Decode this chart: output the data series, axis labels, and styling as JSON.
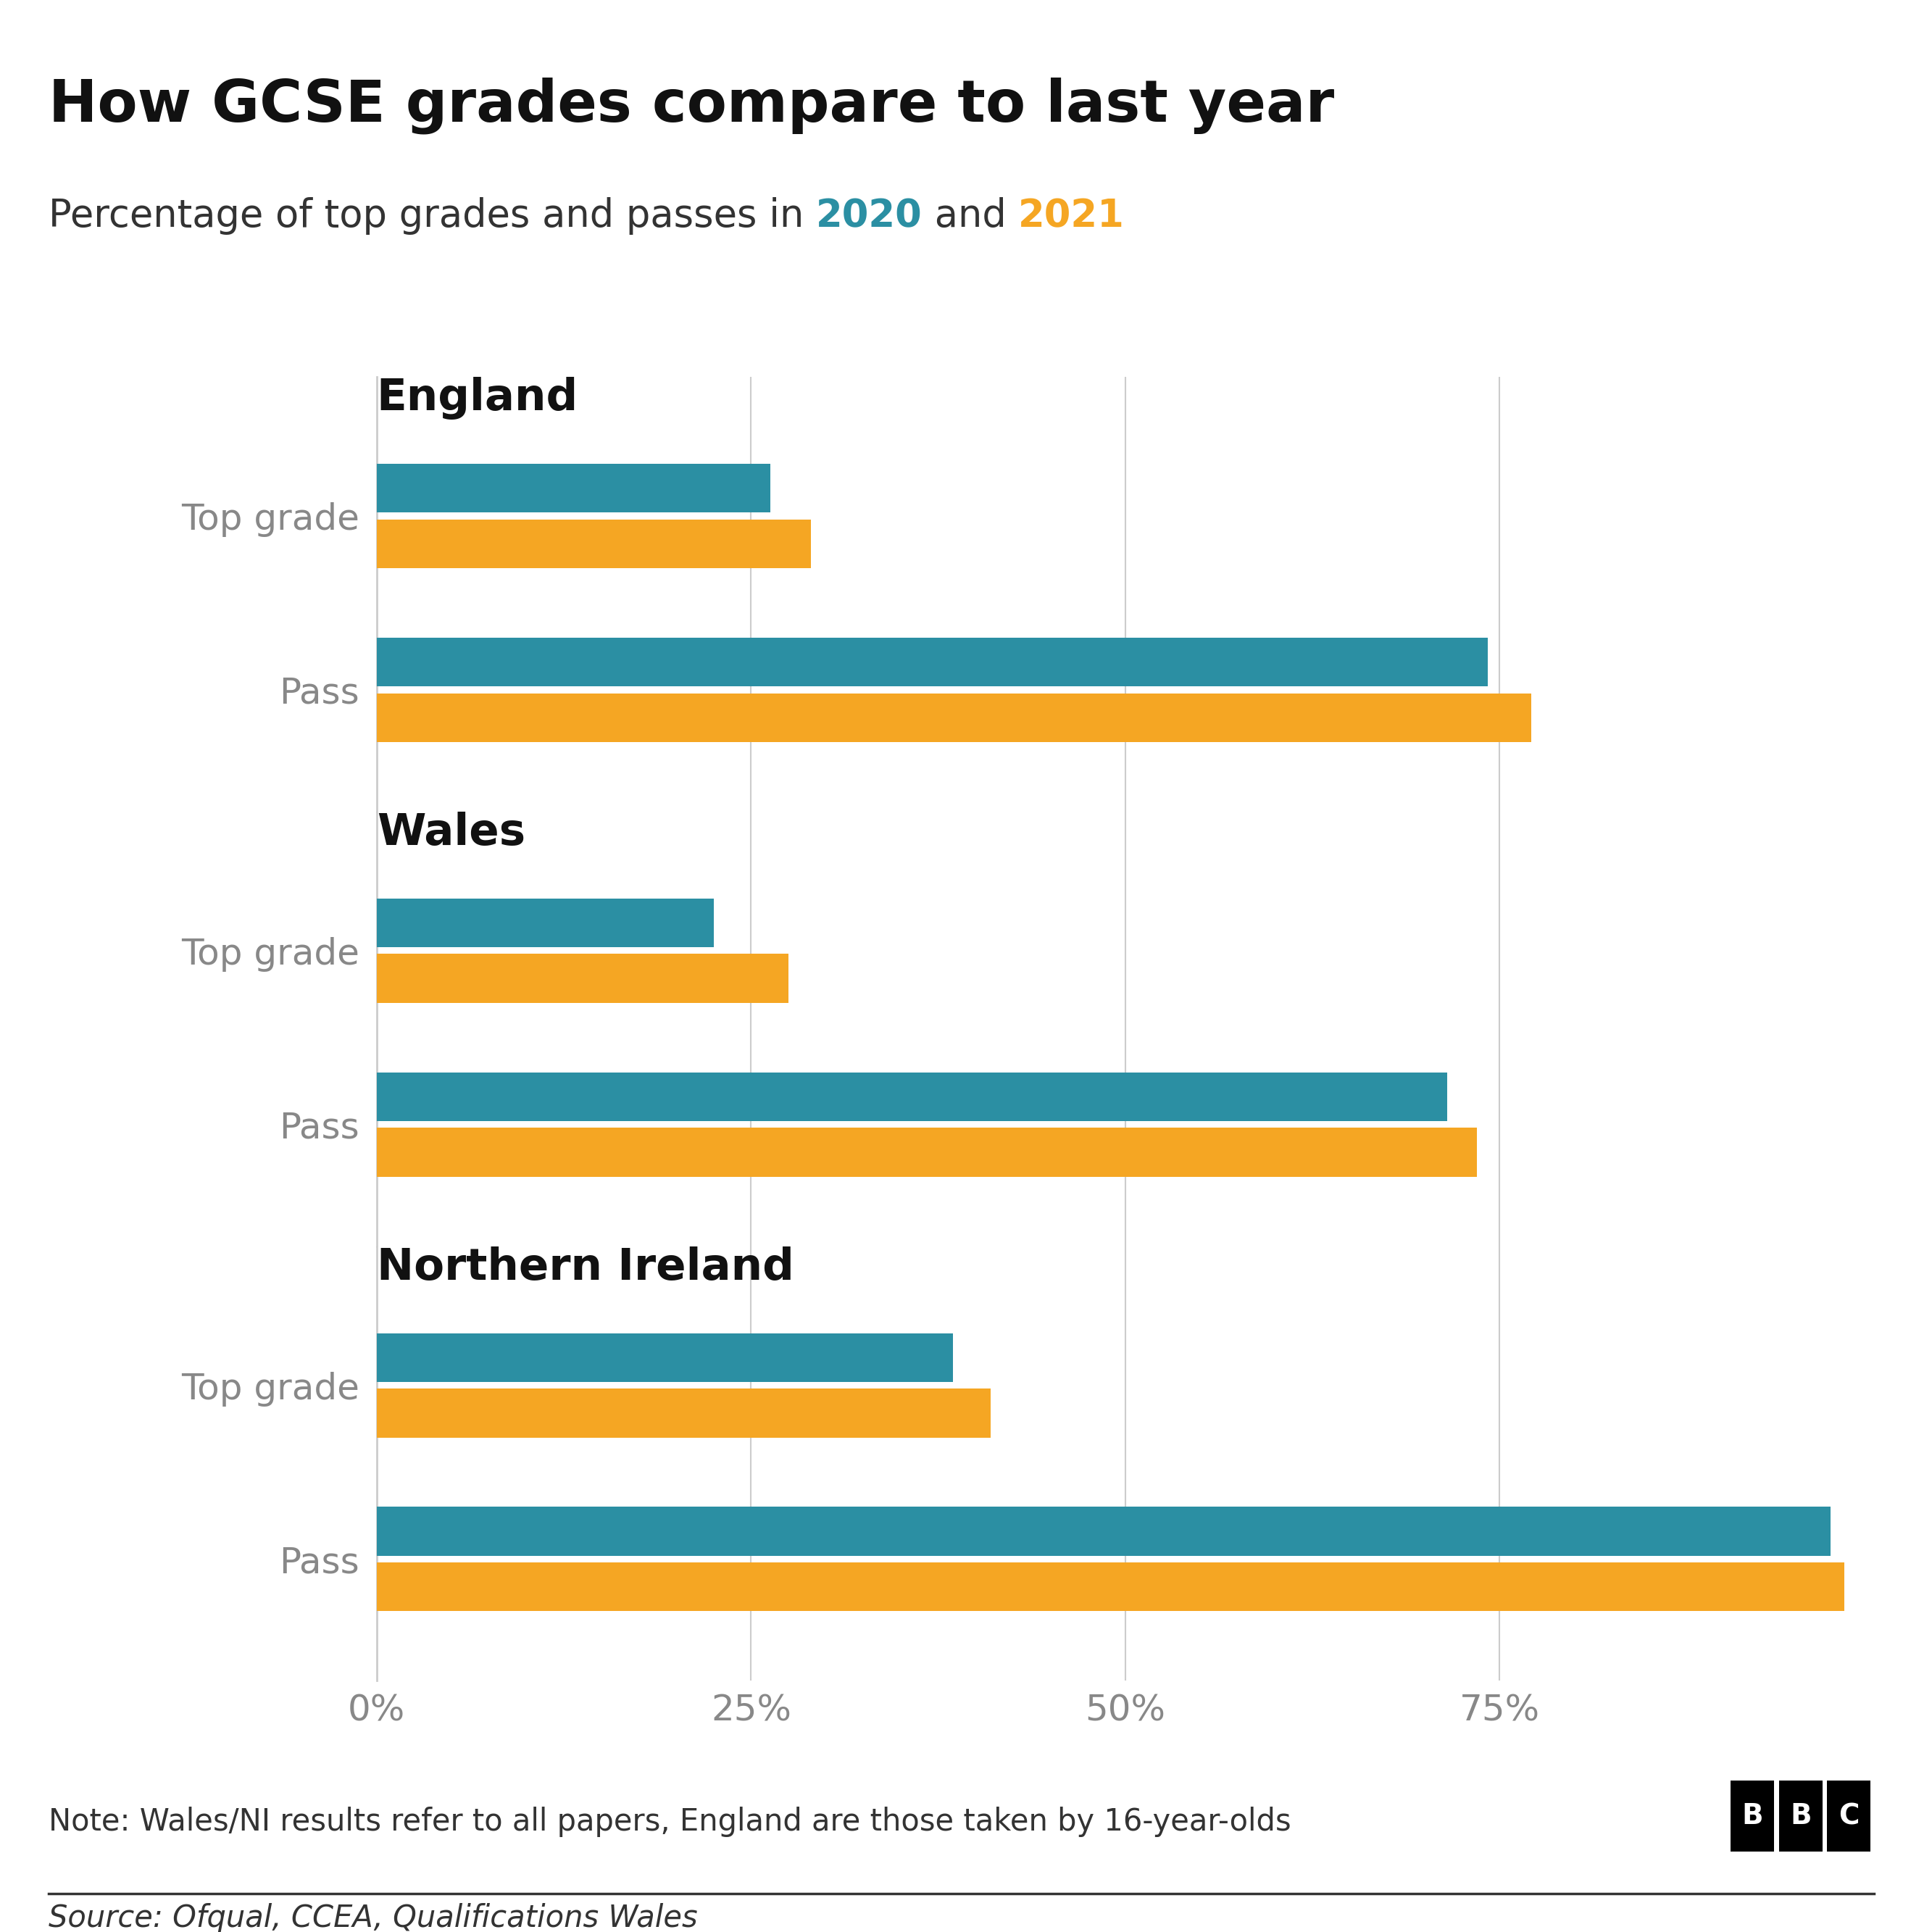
{
  "title": "How GCSE grades compare to last year",
  "subtitle_plain": "Percentage of top grades and passes in ",
  "subtitle_2020": "2020",
  "subtitle_and": " and ",
  "subtitle_2021": "2021",
  "color_2020": "#2B8FA3",
  "color_2021": "#F5A623",
  "regions": [
    "England",
    "Wales",
    "Northern Ireland"
  ],
  "values_2020": {
    "England": {
      "Top grade": 26.3,
      "Pass": 74.2
    },
    "Wales": {
      "Top grade": 22.5,
      "Pass": 71.5
    },
    "Northern Ireland": {
      "Top grade": 38.5,
      "Pass": 97.1
    }
  },
  "values_2021": {
    "England": {
      "Top grade": 29.0,
      "Pass": 77.1
    },
    "Wales": {
      "Top grade": 27.5,
      "Pass": 73.5
    },
    "Northern Ireland": {
      "Top grade": 41.0,
      "Pass": 98.0
    }
  },
  "xlim": [
    0,
    100
  ],
  "xticks": [
    0,
    25,
    50,
    75
  ],
  "xtick_labels": [
    "0%",
    "25%",
    "50%",
    "75%"
  ],
  "note": "Note: Wales/NI results refer to all papers, England are those taken by 16-year-olds",
  "source": "Source: Ofqual, CCEA, Qualifications Wales",
  "bg_color": "#ffffff",
  "gridline_color": "#cccccc",
  "category_label_color": "#888888",
  "title_fontsize": 58,
  "subtitle_fontsize": 38,
  "region_fontsize": 44,
  "category_fontsize": 36,
  "tick_fontsize": 36,
  "note_fontsize": 30,
  "source_fontsize": 30
}
